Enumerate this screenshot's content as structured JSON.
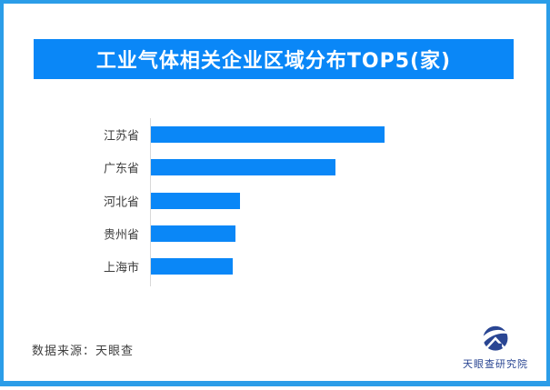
{
  "header": {
    "title": "工业气体相关企业区域分布TOP5(家)"
  },
  "footer": {
    "source_label": "数据来源：天眼查",
    "logo_text": "天眼查研究院"
  },
  "colors": {
    "frame_border": "#2b9de8",
    "header_bg": "#0a87f7",
    "bar": "#0a87f7",
    "logo_navy": "#2a4693"
  },
  "chart_data": {
    "type": "bar",
    "orientation": "horizontal",
    "title": "工业气体相关企业区域分布TOP5(家)",
    "categories": [
      "江苏省",
      "广东省",
      "河北省",
      "贵州省",
      "上海市"
    ],
    "values": [
      100,
      79,
      38,
      36,
      35
    ],
    "values_note": "坐标轴无数值刻度，数值为按条形长度归一化的相对值（最长条=100）",
    "xlabel": "",
    "ylabel": "",
    "legend": false,
    "grid": false,
    "unit_hint": "家"
  }
}
